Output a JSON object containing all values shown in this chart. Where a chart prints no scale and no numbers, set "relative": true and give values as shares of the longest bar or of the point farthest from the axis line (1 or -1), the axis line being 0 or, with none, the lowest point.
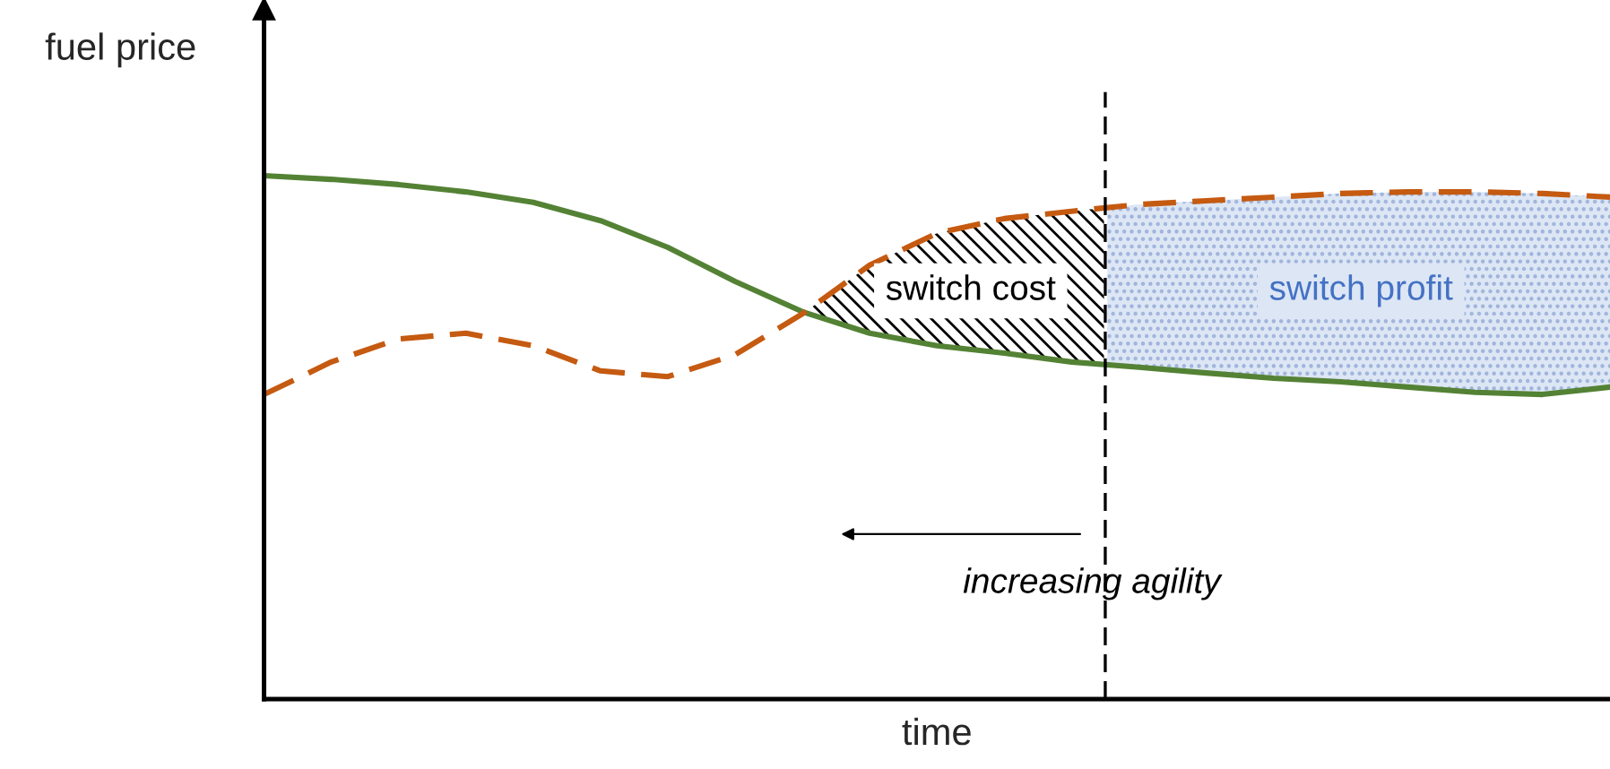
{
  "chart_data": {
    "type": "line",
    "relative": true,
    "xlabel": "time",
    "ylabel": "fuel price",
    "categories": [
      null,
      null,
      null,
      null,
      null,
      null,
      null,
      null,
      null,
      null,
      null,
      null,
      null,
      null,
      null,
      null,
      null,
      null,
      null,
      null,
      null
    ],
    "series": [
      {
        "color": "#548235",
        "line_style": "solid",
        "values": [
          1.0,
          0.993,
          0.983,
          0.969,
          0.949,
          0.914,
          0.863,
          0.798,
          0.74,
          0.699,
          0.675,
          0.661,
          0.644,
          0.634,
          0.623,
          0.613,
          0.606,
          0.596,
          0.586,
          0.582,
          0.596
        ]
      },
      {
        "color": "#c55a11",
        "line_style": "dashed",
        "values": [
          0.582,
          0.644,
          0.688,
          0.699,
          0.675,
          0.627,
          0.616,
          0.658,
          0.736,
          0.829,
          0.89,
          0.918,
          0.932,
          0.945,
          0.952,
          0.959,
          0.966,
          0.969,
          0.969,
          0.966,
          0.959
        ]
      }
    ],
    "annotations": [
      "switch cost",
      "switch profit",
      "increasing agility"
    ]
  }
}
